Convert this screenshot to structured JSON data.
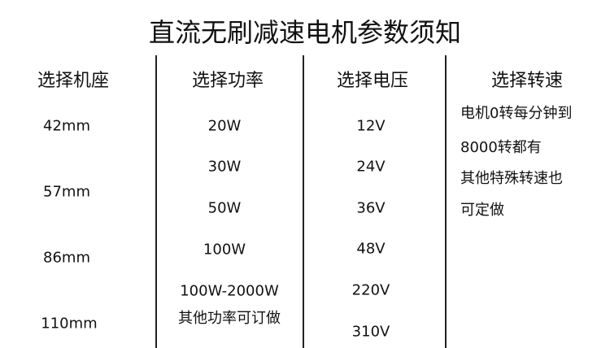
{
  "title": "直流无刷减速电机参数须知",
  "columns": [
    {
      "header": "选择机座",
      "items": [
        "42mm",
        "57mm",
        "86mm",
        "110mm"
      ]
    },
    {
      "header": "选择功率",
      "items": [
        "20W",
        "30W",
        "50W",
        "100W",
        "100W-2000W",
        "其他功率可订做"
      ]
    },
    {
      "header": "选择电压",
      "items": [
        "12V",
        "24V",
        "36V",
        "48V",
        "220V",
        "310V"
      ]
    },
    {
      "header": "选择转速",
      "items": [
        "电机0转每分钟到",
        "8000转都有",
        "其他特殊转速也",
        "可定做"
      ]
    }
  ]
}
